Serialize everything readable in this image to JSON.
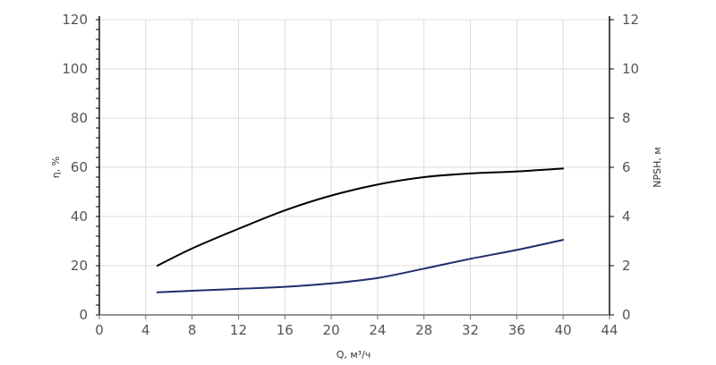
{
  "chart_data": {
    "type": "line",
    "title": "",
    "xlabel": "Q, м³/ч",
    "ylabel_left": "η, %",
    "ylabel_right": "NPSH, м",
    "xlim": [
      0,
      44
    ],
    "ylim_left": [
      0,
      120
    ],
    "ylim_right": [
      0,
      12
    ],
    "x_ticks": [
      "0",
      "4",
      "8",
      "12",
      "16",
      "20",
      "24",
      "28",
      "32",
      "36",
      "40",
      "44"
    ],
    "y_left_ticks": [
      "0",
      "20",
      "40",
      "60",
      "80",
      "100",
      "120"
    ],
    "y_right_ticks": [
      "0",
      "2",
      "4",
      "6",
      "8",
      "10",
      "12"
    ],
    "grid": true,
    "legend": "none",
    "series": [
      {
        "axis": "left",
        "color": "#000000",
        "points": [
          [
            5,
            20
          ],
          [
            8,
            27
          ],
          [
            12,
            35
          ],
          [
            16,
            42.5
          ],
          [
            20,
            48.5
          ],
          [
            24,
            53
          ],
          [
            28,
            56
          ],
          [
            32,
            57.5
          ],
          [
            36,
            58.3
          ],
          [
            40,
            59.5
          ]
        ]
      },
      {
        "axis": "right",
        "color": "#1f2d6b",
        "points": [
          [
            5,
            0.92
          ],
          [
            8,
            0.98
          ],
          [
            12,
            1.06
          ],
          [
            16,
            1.14
          ],
          [
            20,
            1.28
          ],
          [
            24,
            1.5
          ],
          [
            28,
            1.88
          ],
          [
            32,
            2.28
          ],
          [
            36,
            2.64
          ],
          [
            40,
            3.05
          ]
        ]
      }
    ]
  }
}
